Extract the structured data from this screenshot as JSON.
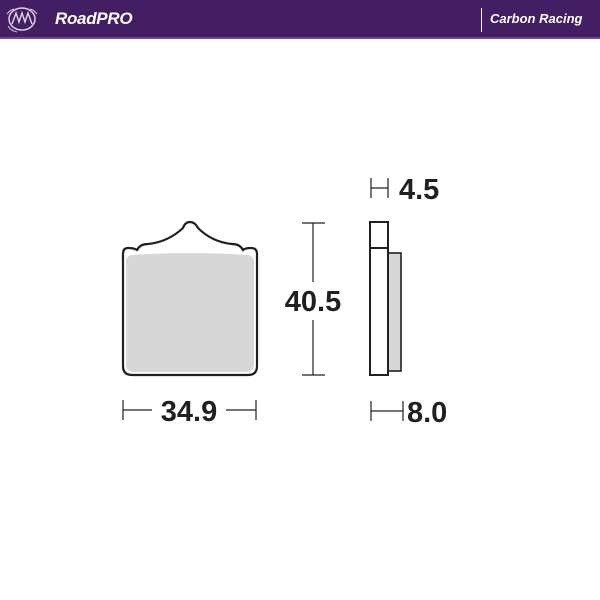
{
  "header": {
    "brand": "RoadPRO",
    "product_line": "Carbon Racing",
    "background_color": "#431e62",
    "logo_icon": "brand-emblem"
  },
  "diagram": {
    "dimensions": {
      "width": "34.9",
      "height": "40.5",
      "backing_thickness": "4.5",
      "total_thickness": "8.0"
    },
    "friction_color": "#d7d7d7",
    "outline_color": "#231f20"
  }
}
